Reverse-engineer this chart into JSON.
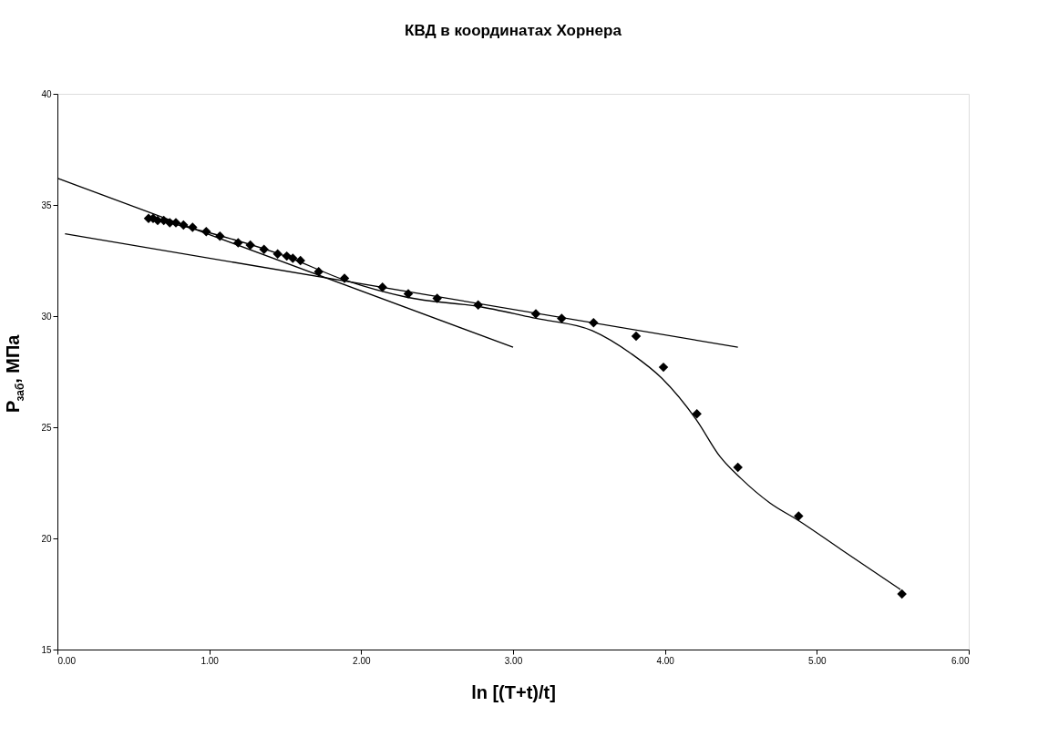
{
  "chart_data": {
    "type": "scatter",
    "title": "КВД в координатах Хорнера",
    "xlabel": "ln [(T+t)/t]",
    "ylabel": "P$_{заб}$, МПа",
    "xlim": [
      0,
      6
    ],
    "ylim": [
      15,
      40
    ],
    "xticks": [
      {
        "value": 0,
        "label": "0.00"
      },
      {
        "value": 1,
        "label": "1.00"
      },
      {
        "value": 2,
        "label": "2.00"
      },
      {
        "value": 3,
        "label": "3.00"
      },
      {
        "value": 4,
        "label": "4.00"
      },
      {
        "value": 5,
        "label": "5.00"
      },
      {
        "value": 6,
        "label": "6.00"
      }
    ],
    "yticks": [
      15,
      20,
      25,
      30,
      35,
      40
    ],
    "grid": false,
    "series": [
      {
        "type": "scatter",
        "marker": "diamond",
        "color": "#000000",
        "x": [
          0.6,
          0.63,
          0.66,
          0.7,
          0.74,
          0.78,
          0.83,
          0.89,
          0.98,
          1.07,
          1.19,
          1.27,
          1.36,
          1.45,
          1.51,
          1.55,
          1.6,
          1.72,
          1.89,
          2.14,
          2.31,
          2.5,
          2.77,
          3.15,
          3.32,
          3.53,
          3.81,
          3.99,
          4.21,
          4.48,
          4.88,
          5.56
        ],
        "values": [
          34.4,
          34.4,
          34.3,
          34.3,
          34.2,
          34.2,
          34.1,
          34.0,
          33.8,
          33.6,
          33.3,
          33.2,
          33.0,
          32.8,
          32.7,
          32.6,
          32.5,
          32.0,
          31.7,
          31.3,
          31.0,
          30.8,
          30.5,
          30.1,
          29.9,
          29.7,
          29.1,
          27.7,
          25.6,
          23.2,
          21.0,
          17.5
        ]
      },
      {
        "type": "line",
        "marker": "none",
        "line_style": "solid",
        "color": "#000000",
        "x": [
          0,
          3.0
        ],
        "values": [
          36.2,
          28.6
        ]
      },
      {
        "type": "line",
        "marker": "none",
        "line_style": "solid",
        "color": "#000000",
        "x": [
          0.05,
          4.48
        ],
        "values": [
          33.7,
          28.6
        ]
      },
      {
        "type": "line",
        "marker": "none",
        "line_style": "solid",
        "color": "#000000",
        "x": [
          0.6,
          1.0,
          1.5,
          1.9,
          2.3,
          2.8,
          3.15,
          3.52,
          3.78,
          3.98,
          4.21,
          4.36,
          4.5,
          4.69,
          4.88,
          5.16,
          5.55
        ],
        "values": [
          34.4,
          33.75,
          32.7,
          31.6,
          30.85,
          30.4,
          29.9,
          29.35,
          28.3,
          27.2,
          25.3,
          23.7,
          22.7,
          21.6,
          20.8,
          19.5,
          17.7
        ]
      }
    ]
  }
}
